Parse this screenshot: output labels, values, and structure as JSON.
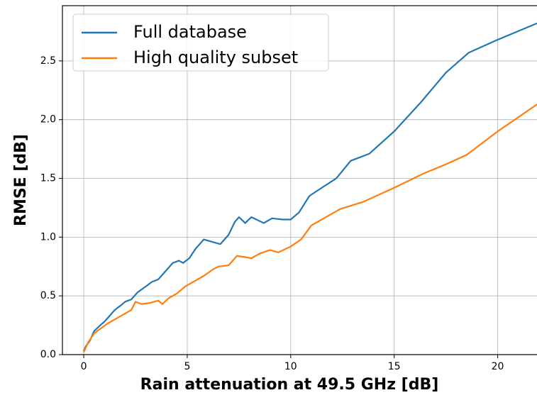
{
  "chart_data": {
    "type": "line",
    "xlabel": "Rain attenuation at 49.5 GHz [dB]",
    "ylabel": "RMSE [dB]",
    "xlim": [
      -1.03,
      21.9
    ],
    "ylim": [
      0,
      2.97
    ],
    "xticks": [
      0,
      5,
      10,
      15,
      20
    ],
    "yticks": [
      {
        "value": 0,
        "label": "0.0"
      },
      0.5,
      {
        "value": 1,
        "label": "1.0"
      },
      1.5,
      {
        "value": 2,
        "label": "2.0"
      },
      2.5
    ],
    "grid": true,
    "legend": "upper left",
    "series": [
      {
        "name": "Full database",
        "color": "#1f77b4",
        "x": [
          0,
          0.1,
          0.3,
          0.5,
          0.8,
          1.0,
          1.2,
          1.5,
          1.8,
          2.0,
          2.3,
          2.6,
          3.0,
          3.3,
          3.6,
          4.0,
          4.3,
          4.6,
          4.8,
          5.1,
          5.4,
          5.8,
          6.2,
          6.6,
          7.0,
          7.3,
          7.5,
          7.8,
          8.1,
          8.7,
          9.1,
          9.6,
          10.0,
          10.4,
          10.9,
          11.5,
          12.2,
          12.9,
          13.8,
          15.0,
          16.3,
          17.5,
          18.6,
          20.0,
          21.9
        ],
        "values": [
          0.03,
          0.07,
          0.12,
          0.2,
          0.25,
          0.28,
          0.32,
          0.38,
          0.42,
          0.45,
          0.47,
          0.53,
          0.58,
          0.62,
          0.64,
          0.72,
          0.78,
          0.8,
          0.78,
          0.82,
          0.9,
          0.98,
          0.96,
          0.94,
          1.02,
          1.13,
          1.17,
          1.12,
          1.17,
          1.12,
          1.16,
          1.15,
          1.15,
          1.21,
          1.35,
          1.42,
          1.5,
          1.65,
          1.71,
          1.9,
          2.15,
          2.4,
          2.57,
          2.68,
          2.82
        ]
      },
      {
        "name": "High quality subset",
        "color": "#ff7f0e",
        "x": [
          0,
          0.2,
          0.5,
          0.8,
          1.2,
          1.6,
          2.0,
          2.3,
          2.5,
          2.8,
          3.2,
          3.6,
          3.8,
          4.1,
          4.5,
          4.9,
          5.3,
          5.8,
          6.2,
          6.5,
          7.0,
          7.4,
          7.8,
          8.1,
          8.5,
          9.0,
          9.4,
          10.0,
          10.5,
          11.0,
          11.7,
          12.4,
          13.5,
          15.0,
          16.4,
          17.5,
          18.5,
          20.0,
          21.9
        ],
        "values": [
          0.02,
          0.1,
          0.18,
          0.22,
          0.27,
          0.31,
          0.35,
          0.38,
          0.45,
          0.43,
          0.44,
          0.46,
          0.43,
          0.48,
          0.52,
          0.58,
          0.62,
          0.67,
          0.72,
          0.75,
          0.76,
          0.84,
          0.83,
          0.82,
          0.86,
          0.89,
          0.87,
          0.92,
          0.98,
          1.1,
          1.17,
          1.24,
          1.3,
          1.42,
          1.54,
          1.62,
          1.7,
          1.9,
          2.13
        ]
      }
    ]
  }
}
